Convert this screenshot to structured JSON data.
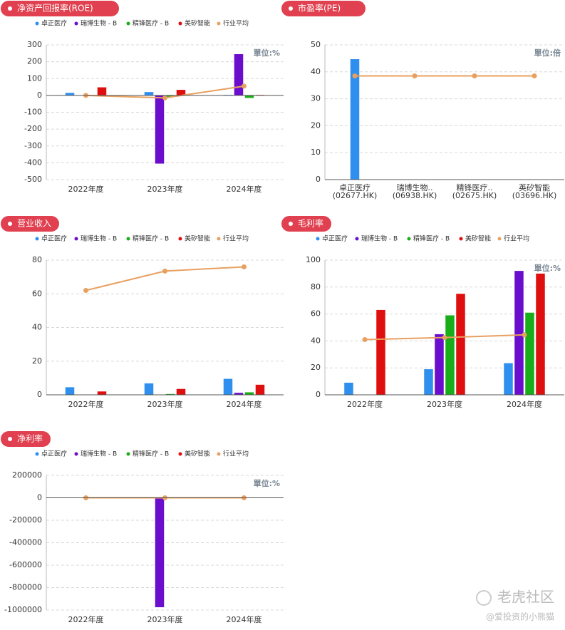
{
  "chart_data": [
    {
      "type": "bar",
      "title": "净资产回报率(ROE)",
      "unit": "單位:%",
      "legend": true,
      "grid": true,
      "categories": [
        "2022年度",
        "2023年度",
        "2024年度"
      ],
      "ylim": [
        -500,
        300
      ],
      "yticks": [
        300,
        200,
        100,
        0,
        -100,
        -200,
        -300,
        -400,
        -500
      ],
      "series": [
        {
          "name": "卓正医疗",
          "color": "#2f8fef",
          "values": [
            15,
            20,
            3
          ]
        },
        {
          "name": "瑞博生物 - B",
          "color": "#6a0dcc",
          "values": [
            0,
            -405,
            245
          ]
        },
        {
          "name": "精锋医疗 - B",
          "color": "#1aad1a",
          "values": [
            0,
            -10,
            -15
          ]
        },
        {
          "name": "美矽智能",
          "color": "#e00f0f",
          "values": [
            48,
            33,
            3
          ]
        },
        {
          "name": "行业平均",
          "color": "#e8a060",
          "type": "line",
          "values": [
            0,
            -15,
            55
          ]
        }
      ]
    },
    {
      "type": "bar",
      "title": "市盈率(PE)",
      "unit": "單位:倍",
      "legend": false,
      "grid": true,
      "categories": [
        [
          "卓正医疗",
          "(02677.HK)"
        ],
        [
          "瑞博生物..",
          "(06938.HK)"
        ],
        [
          "精锋医疗..",
          "(02675.HK)"
        ],
        [
          "英矽智能",
          "(03696.HK)"
        ]
      ],
      "ylim": [
        0,
        50
      ],
      "yticks": [
        50,
        40,
        30,
        20,
        10,
        0
      ],
      "series": [
        {
          "name": "市盈率",
          "color": "#2f8fef",
          "values": [
            44.7,
            null,
            null,
            null
          ]
        },
        {
          "name": "行业平均",
          "color": "#e8a060",
          "type": "line",
          "values": [
            38.5,
            38.5,
            38.5,
            38.5
          ]
        }
      ]
    },
    {
      "type": "bar",
      "title": "营业收入",
      "legend": true,
      "grid": true,
      "categories": [
        "2022年度",
        "2023年度",
        "2024年度"
      ],
      "ylim": [
        0,
        80
      ],
      "yticks": [
        80,
        60,
        40,
        20,
        0
      ],
      "series": [
        {
          "name": "卓正医疗",
          "color": "#2f8fef",
          "values": [
            4.5,
            6.8,
            9.5
          ]
        },
        {
          "name": "瑞博生物 - B",
          "color": "#6a0dcc",
          "values": [
            0,
            0,
            1.2
          ]
        },
        {
          "name": "精锋医疗 - B",
          "color": "#1aad1a",
          "values": [
            0,
            0.5,
            1.5
          ]
        },
        {
          "name": "美矽智能",
          "color": "#e00f0f",
          "values": [
            2,
            3.5,
            6
          ]
        },
        {
          "name": "行业平均",
          "color": "#e8a060",
          "type": "line",
          "values": [
            62,
            73.5,
            76
          ]
        }
      ]
    },
    {
      "type": "bar",
      "title": "毛利率",
      "unit": "單位:%",
      "legend": true,
      "grid": true,
      "categories": [
        "2022年度",
        "2023年度",
        "2024年度"
      ],
      "ylim": [
        0,
        100
      ],
      "yticks": [
        100,
        80,
        60,
        40,
        20,
        0
      ],
      "series": [
        {
          "name": "卓正医疗",
          "color": "#2f8fef",
          "values": [
            9,
            19,
            23.5
          ]
        },
        {
          "name": "瑞博生物 - B",
          "color": "#6a0dcc",
          "values": [
            null,
            45,
            92
          ]
        },
        {
          "name": "精锋医疗 - B",
          "color": "#1aad1a",
          "values": [
            null,
            59,
            61
          ]
        },
        {
          "name": "美矽智能",
          "color": "#e00f0f",
          "values": [
            63,
            75,
            90
          ]
        },
        {
          "name": "行业平均",
          "color": "#e8a060",
          "type": "line",
          "values": [
            41,
            42.5,
            44.5
          ]
        }
      ]
    },
    {
      "type": "bar",
      "title": "净利率",
      "unit": "單位:%",
      "legend": true,
      "grid": true,
      "categories": [
        "2022年度",
        "2023年度",
        "2024年度"
      ],
      "ylim": [
        -1000000,
        200000
      ],
      "yticks": [
        200000,
        0,
        -200000,
        -400000,
        -600000,
        -800000,
        -1000000
      ],
      "series": [
        {
          "name": "卓正医疗",
          "color": "#2f8fef",
          "values": [
            5,
            8,
            10
          ]
        },
        {
          "name": "瑞博生物 - B",
          "color": "#6a0dcc",
          "values": [
            0,
            -975000,
            -50
          ]
        },
        {
          "name": "精锋医疗 - B",
          "color": "#1aad1a",
          "values": [
            0,
            -800,
            -100
          ]
        },
        {
          "name": "美矽智能",
          "color": "#e00f0f",
          "values": [
            20,
            15,
            5
          ]
        },
        {
          "name": "行业平均",
          "color": "#e8a060",
          "type": "line",
          "values": [
            0,
            0,
            0
          ]
        }
      ]
    }
  ],
  "watermark": {
    "brand": "老虎社区",
    "author": "@爱投资的小熊猫"
  }
}
